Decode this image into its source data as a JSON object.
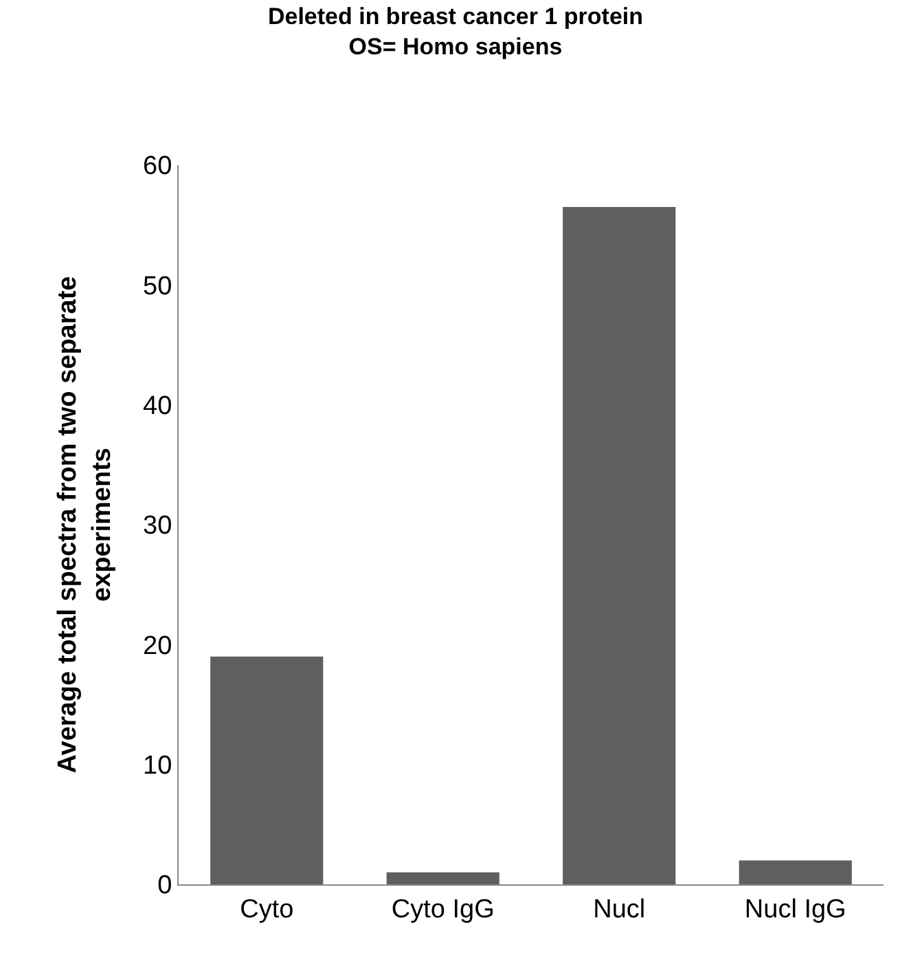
{
  "chart_data": {
    "type": "bar",
    "title": "Deleted in breast cancer 1 protein\nOS= Homo sapiens",
    "ylabel": "Average total spectra from two separate\nexperiments",
    "categories": [
      "Cyto",
      "Cyto IgG",
      "Nucl",
      "Nucl IgG"
    ],
    "values": [
      19,
      1,
      56.5,
      2
    ],
    "color": "#5f5f5f",
    "ylim": [
      0,
      60
    ],
    "yticks": [
      0,
      10,
      20,
      30,
      40,
      50,
      60
    ]
  }
}
